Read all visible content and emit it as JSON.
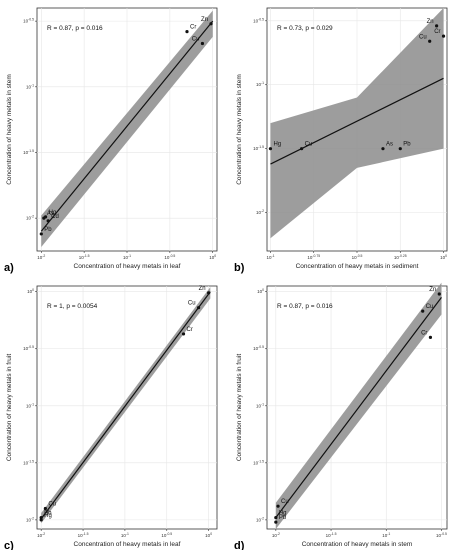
{
  "chart_data": [
    {
      "type": "scatter",
      "panel_label": "a)",
      "stat_text": "R = 0.87, p = 0.016",
      "xlabel": "Concentration of heavy metals in leaf",
      "ylabel": "Concentration of heavy metals in stem",
      "xlim": [
        -2.05,
        0.05
      ],
      "ylim": [
        -2.25,
        -0.4
      ],
      "x_ticks": [
        {
          "value": -2,
          "label": "10^-2"
        },
        {
          "value": -1.5,
          "label": "10^-1.5"
        },
        {
          "value": -1,
          "label": "10^-1"
        },
        {
          "value": -0.5,
          "label": "10^-0.5"
        },
        {
          "value": 0,
          "label": "10^0"
        }
      ],
      "y_ticks": [
        {
          "value": -2,
          "label": "10^-2"
        },
        {
          "value": -1.5,
          "label": "10^-1.5"
        },
        {
          "value": -1,
          "label": "10^-1"
        },
        {
          "value": -0.5,
          "label": "10^-0.5"
        }
      ],
      "points": [
        {
          "label": "Cr",
          "x": -0.3,
          "y": -0.58
        },
        {
          "label": "Zn",
          "x": -0.02,
          "y": -0.52
        },
        {
          "label": "Cu",
          "x": -0.12,
          "y": -0.67
        },
        {
          "label": "As",
          "x": -1.97,
          "y": -2.0
        },
        {
          "label": "Hg",
          "x": -1.95,
          "y": -1.99
        },
        {
          "label": "Cd",
          "x": -1.92,
          "y": -2.02
        },
        {
          "label": "Pb",
          "x": -2.0,
          "y": -2.12
        }
      ],
      "fit": {
        "x": [
          -2.0,
          0.0
        ],
        "y": [
          -2.1,
          -0.5
        ]
      },
      "band": {
        "x": [
          -2.0,
          0.0
        ],
        "lower": [
          -2.22,
          -0.62
        ],
        "upper": [
          -1.98,
          -0.42
        ]
      },
      "grid": true
    },
    {
      "type": "scatter",
      "panel_label": "b)",
      "stat_text": "R = 0.73, p = 0.029",
      "xlabel": "Concentration of heavy metals in sediment",
      "ylabel": "Concentration of heavy metals in stem",
      "xlim": [
        -1.02,
        0.02
      ],
      "ylim": [
        -2.3,
        -0.4
      ],
      "x_ticks": [
        {
          "value": -1,
          "label": "10^-1"
        },
        {
          "value": -0.75,
          "label": "10^-0.75"
        },
        {
          "value": -0.5,
          "label": "10^-0.5"
        },
        {
          "value": -0.25,
          "label": "10^-0.25"
        },
        {
          "value": 0,
          "label": "10^0"
        }
      ],
      "y_ticks": [
        {
          "value": -2,
          "label": "10^-2"
        },
        {
          "value": -1.5,
          "label": "10^-1.5"
        },
        {
          "value": -1,
          "label": "10^-1"
        },
        {
          "value": -0.5,
          "label": "10^-0.5"
        }
      ],
      "points": [
        {
          "label": "Hg",
          "x": -1.0,
          "y": -1.5
        },
        {
          "label": "Cu",
          "x": -0.82,
          "y": -1.5
        },
        {
          "label": "As",
          "x": -0.35,
          "y": -1.5
        },
        {
          "label": "Pb",
          "x": -0.25,
          "y": -1.5
        },
        {
          "label": "Cu",
          "x": -0.08,
          "y": -0.66
        },
        {
          "label": "Zn",
          "x": -0.04,
          "y": -0.54
        },
        {
          "label": "Cr",
          "x": 0.0,
          "y": -0.62
        }
      ],
      "fit": {
        "x": [
          -1.0,
          0.0
        ],
        "y": [
          -1.62,
          -0.95
        ]
      },
      "band": {
        "x": [
          -1.0,
          -0.5,
          0.0
        ],
        "lower": [
          -2.2,
          -1.65,
          -1.5
        ],
        "upper": [
          -1.3,
          -1.1,
          -0.4
        ]
      },
      "grid": true
    },
    {
      "type": "scatter",
      "panel_label": "c)",
      "stat_text": "R = 1, p = 0.0054",
      "xlabel": "Concentration of heavy metals in leaf",
      "ylabel": "Concentration of heavy metals in fruit",
      "xlim": [
        -2.05,
        0.1
      ],
      "ylim": [
        -2.08,
        0.05
      ],
      "x_ticks": [
        {
          "value": -2,
          "label": "10^-2"
        },
        {
          "value": -1.5,
          "label": "10^-1.5"
        },
        {
          "value": -1,
          "label": "10^-1"
        },
        {
          "value": -0.5,
          "label": "10^-0.5"
        },
        {
          "value": 0,
          "label": "10^0"
        }
      ],
      "y_ticks": [
        {
          "value": -2,
          "label": "10^-2"
        },
        {
          "value": -1.5,
          "label": "10^-1.5"
        },
        {
          "value": -1,
          "label": "10^-1"
        },
        {
          "value": -0.5,
          "label": "10^-0.5"
        },
        {
          "value": 0,
          "label": "10^0"
        }
      ],
      "points": [
        {
          "label": "Zn",
          "x": 0.0,
          "y": -0.01
        },
        {
          "label": "Cu",
          "x": -0.12,
          "y": -0.14
        },
        {
          "label": "Cr",
          "x": -0.3,
          "y": -0.37
        },
        {
          "label": "Cu",
          "x": -1.95,
          "y": -1.9
        },
        {
          "label": "Pb",
          "x": -2.0,
          "y": -1.98
        },
        {
          "label": "Hg",
          "x": -2.0,
          "y": -2.0
        }
      ],
      "fit": {
        "x": [
          -2.0,
          0.02
        ],
        "y": [
          -1.99,
          0.0
        ]
      },
      "band": {
        "x": [
          -2.0,
          0.02
        ],
        "lower": [
          -2.03,
          -0.06
        ],
        "upper": [
          -1.94,
          0.04
        ]
      },
      "grid": true
    },
    {
      "type": "scatter",
      "panel_label": "d)",
      "stat_text": "R = 0.87, p = 0.016",
      "xlabel": "Concentration of heavy metals in stem",
      "ylabel": "Concentration of heavy metals in fruit",
      "xlim": [
        -2.08,
        -0.45
      ],
      "ylim": [
        -2.08,
        0.05
      ],
      "x_ticks": [
        {
          "value": -2,
          "label": "10^-2"
        },
        {
          "value": -1.5,
          "label": "10^-1.5"
        },
        {
          "value": -1,
          "label": "10^-1"
        },
        {
          "value": -0.5,
          "label": "10^-0.5"
        }
      ],
      "y_ticks": [
        {
          "value": -2,
          "label": "10^-2"
        },
        {
          "value": -1.5,
          "label": "10^-1.5"
        },
        {
          "value": -1,
          "label": "10^-1"
        },
        {
          "value": -0.5,
          "label": "10^-0.5"
        },
        {
          "value": 0,
          "label": "10^0"
        }
      ],
      "points": [
        {
          "label": "Zn",
          "x": -0.52,
          "y": -0.02
        },
        {
          "label": "Cu",
          "x": -0.67,
          "y": -0.17
        },
        {
          "label": "Cr",
          "x": -0.6,
          "y": -0.4
        },
        {
          "label": "Cu",
          "x": -1.98,
          "y": -1.88
        },
        {
          "label": "Hg",
          "x": -2.0,
          "y": -1.98
        },
        {
          "label": "Pb",
          "x": -2.0,
          "y": -2.02
        }
      ],
      "fit": {
        "x": [
          -2.0,
          -0.5
        ],
        "y": [
          -1.98,
          -0.05
        ]
      },
      "band": {
        "x": [
          -2.0,
          -0.5
        ],
        "lower": [
          -2.08,
          -0.2
        ],
        "upper": [
          -1.85,
          0.08
        ]
      },
      "grid": true
    }
  ]
}
